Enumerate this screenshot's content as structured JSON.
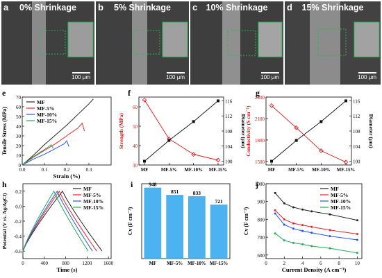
{
  "panels": {
    "a": {
      "letter": "a",
      "title": "0% Shrinkage",
      "scale": "100 μm"
    },
    "b": {
      "letter": "b",
      "title": "5% Shrinkage",
      "scale": "100 μm"
    },
    "c": {
      "letter": "c",
      "title": "10% Shrinkage",
      "scale": "100 μm"
    },
    "d": {
      "letter": "d",
      "title": "15% Shrinkage",
      "scale": "100 μm"
    },
    "e": {
      "letter": "e"
    },
    "f": {
      "letter": "f"
    },
    "g": {
      "letter": "g"
    },
    "h": {
      "letter": "h"
    },
    "i": {
      "letter": "i"
    },
    "j": {
      "letter": "j"
    }
  },
  "colors": {
    "MF": "#222222",
    "MF-5%": "#ee2222",
    "MF-10%": "#2255ee",
    "MF-15%": "#22aa55",
    "bar": "#4db3f0",
    "strength": "#dd1111"
  },
  "chart_data": [
    {
      "id": "e",
      "type": "line",
      "xlabel": "Strain (%)",
      "ylabel": "Tensile Stress (MPa)",
      "xlim": [
        0,
        0.4
      ],
      "ylim": [
        0,
        70
      ],
      "xticks": [
        "0.0",
        "0.1",
        "0.2",
        "0.3"
      ],
      "yticks": [
        "0",
        "10",
        "20",
        "30",
        "40",
        "50",
        "60",
        "70"
      ],
      "legend": "top-left",
      "series": [
        {
          "name": "MF",
          "x": [
            0,
            0.05,
            0.1,
            0.15,
            0.2,
            0.25,
            0.3,
            0.32
          ],
          "y": [
            0,
            10,
            21,
            31,
            41,
            52,
            63,
            68
          ]
        },
        {
          "name": "MF-5%",
          "x": [
            0,
            0.05,
            0.1,
            0.15,
            0.2,
            0.25,
            0.27,
            0.28
          ],
          "y": [
            0,
            8,
            15,
            22,
            30,
            38,
            43,
            35
          ]
        },
        {
          "name": "MF-10%",
          "x": [
            0,
            0.05,
            0.1,
            0.15,
            0.19,
            0.2,
            0.21
          ],
          "y": [
            0,
            6,
            11,
            17,
            22,
            25,
            19
          ]
        },
        {
          "name": "MF-15%",
          "x": [
            0,
            0.04,
            0.08,
            0.12,
            0.13,
            0.14
          ],
          "y": [
            0,
            7,
            13,
            19,
            21,
            17
          ]
        }
      ]
    },
    {
      "id": "f",
      "type": "line",
      "categories": [
        "MF",
        "MF-5%",
        "MF-10%",
        "MF-15%"
      ],
      "ylabel": "Strength (MPa)",
      "y2label": "Diameter (μm)",
      "ylim": [
        30,
        65
      ],
      "yticks": [
        "30",
        "40",
        "50",
        "60"
      ],
      "y2lim": [
        99,
        117
      ],
      "y2ticks": [
        "100",
        "104",
        "108",
        "112",
        "116"
      ],
      "series": [
        {
          "name": "Strength",
          "axis": "left",
          "values": [
            63.5,
            43.5,
            35.5,
            32.5
          ]
        },
        {
          "name": "Diameter",
          "axis": "right",
          "values": [
            100,
            105.5,
            110.5,
            116
          ]
        }
      ]
    },
    {
      "id": "g",
      "type": "line",
      "categories": [
        "MF",
        "MF-5%",
        "MF-10%",
        "MF-15%"
      ],
      "ylabel": "Conductivity (S cm⁻¹)",
      "y2label": "Diameter (μm)",
      "ylim": [
        1450,
        2400
      ],
      "yticks": [
        "1500",
        "1800",
        "2100",
        "2400"
      ],
      "y2lim": [
        99,
        117
      ],
      "y2ticks": [
        "100",
        "104",
        "108",
        "112",
        "116"
      ],
      "series": [
        {
          "name": "Conductivity",
          "axis": "left",
          "values": [
            2280,
            1970,
            1650,
            1490
          ]
        },
        {
          "name": "Diameter",
          "axis": "right",
          "values": [
            100,
            105.5,
            110.5,
            116
          ]
        }
      ]
    },
    {
      "id": "h",
      "type": "line",
      "xlabel": "Time (s)",
      "ylabel": "Potential (V vs. Ag/AgCl)",
      "xlim": [
        0,
        1650
      ],
      "ylim": [
        -0.7,
        0.3
      ],
      "xticks": [
        "0",
        "400",
        "800",
        "1200",
        "1600"
      ],
      "yticks": [
        "-0.6",
        "-0.4",
        "-0.2",
        "0.0",
        "0.2"
      ],
      "legend": "top-right",
      "series": [
        {
          "name": "MF",
          "peak": 740,
          "end": 1480
        },
        {
          "name": "MF-5%",
          "peak": 680,
          "end": 1380
        },
        {
          "name": "MF-10%",
          "peak": 640,
          "end": 1300
        },
        {
          "name": "MF-15%",
          "peak": 580,
          "end": 1220
        }
      ]
    },
    {
      "id": "i",
      "type": "bar",
      "categories": [
        "MF",
        "MF-5%",
        "MF-10%",
        "MF-15%"
      ],
      "values": [
        948,
        851,
        833,
        721
      ],
      "labels": [
        "948",
        "851",
        "833",
        "721"
      ],
      "ylabel": "Cv (F cm⁻³)",
      "ylim": [
        0,
        1000
      ]
    },
    {
      "id": "j",
      "type": "line",
      "xlabel": "Current Density (A cm⁻³)",
      "ylabel": "Cv (F cm⁻³)",
      "xlim": [
        0,
        10.5
      ],
      "ylim": [
        580,
        1000
      ],
      "xticks": [
        "0",
        "2",
        "4",
        "6",
        "8",
        "10"
      ],
      "yticks": [
        "600",
        "700",
        "800",
        "900",
        "1000"
      ],
      "legend": "top-right",
      "series": [
        {
          "name": "MF",
          "x": [
            1,
            2,
            3,
            4,
            5,
            7,
            10
          ],
          "y": [
            948,
            890,
            868,
            855,
            845,
            828,
            795
          ]
        },
        {
          "name": "MF-5%",
          "x": [
            1,
            2,
            3,
            4,
            5,
            7,
            10
          ],
          "y": [
            851,
            800,
            778,
            768,
            758,
            740,
            718
          ]
        },
        {
          "name": "MF-10%",
          "x": [
            1,
            2,
            3,
            4,
            5,
            7,
            10
          ],
          "y": [
            833,
            770,
            748,
            735,
            725,
            706,
            685
          ]
        },
        {
          "name": "MF-15%",
          "x": [
            1,
            2,
            3,
            4,
            5,
            7,
            10
          ],
          "y": [
            721,
            682,
            668,
            660,
            650,
            638,
            612
          ]
        }
      ]
    }
  ]
}
